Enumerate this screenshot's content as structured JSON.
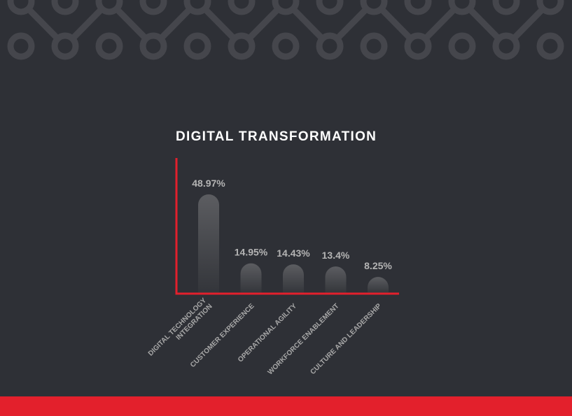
{
  "colors": {
    "background": "#2e3036",
    "accent": "#e3202c",
    "pattern": "#45464c",
    "bar_top": "#5c5d61",
    "bar_bottom": "#33353a",
    "value_label": "#b4b4b4",
    "category_label": "#a8a8a8",
    "title": "#ffffff"
  },
  "chart_data": {
    "type": "bar",
    "title": "DIGITAL TRANSFORMATION",
    "categories": [
      [
        "DIGITAL TECHNOLOGY",
        "INTEGRATION"
      ],
      [
        "CUSTOMER EXPERIENCE"
      ],
      [
        "OPERATIONAL AGILITY"
      ],
      [
        "WORKFORCE ENABLEMENT"
      ],
      [
        "CULTURE AND LEADERSHIP"
      ]
    ],
    "values": [
      48.97,
      14.95,
      14.43,
      13.4,
      8.25
    ],
    "value_labels": [
      "48.97%",
      "14.95%",
      "14.43%",
      "13.4%",
      "8.25%"
    ],
    "xlabel": "",
    "ylabel": "",
    "ylim": [
      0,
      50
    ],
    "grid": false,
    "legend": "none"
  }
}
